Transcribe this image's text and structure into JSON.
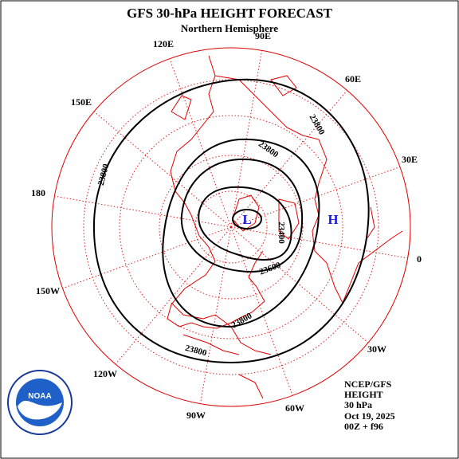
{
  "header": {
    "title": "GFS 30-hPa HEIGHT FORECAST",
    "subtitle": "Northern Hemisphere"
  },
  "longitude_labels": [
    "90E",
    "60E",
    "30E",
    "0",
    "30W",
    "60W",
    "90W",
    "120W",
    "150W",
    "180",
    "150E",
    "120E"
  ],
  "contour_labels": [
    "23800",
    "23800",
    "23800",
    "23400",
    "23600",
    "23800",
    "23800"
  ],
  "pressure_centers": {
    "low": "L",
    "high": "H"
  },
  "footer": [
    "NCEP/GFS",
    "HEIGHT",
    "30 hPa",
    "Oct 19, 2025",
    "00Z + f96"
  ],
  "logo": {
    "text": "NOAA"
  }
}
